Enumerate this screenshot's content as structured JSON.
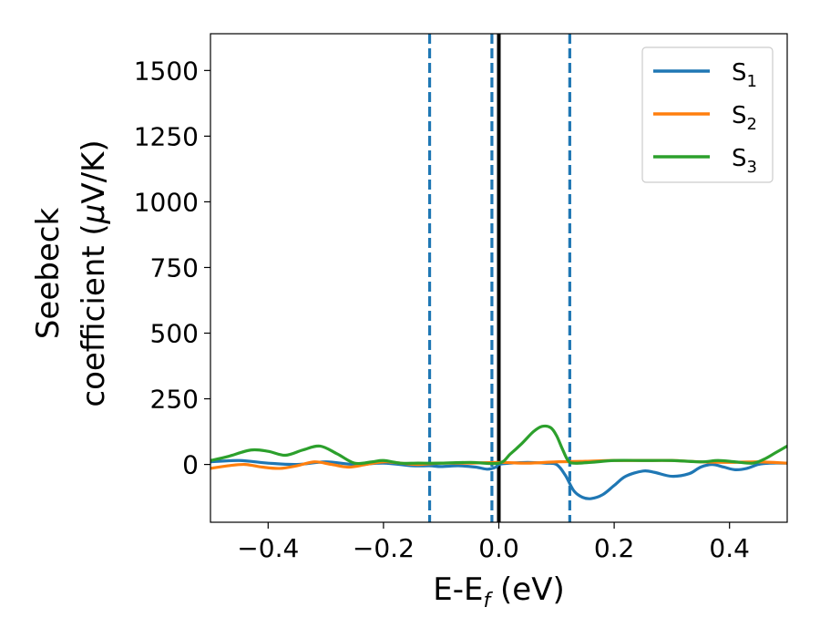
{
  "chart_data": {
    "type": "line",
    "title": "",
    "xlabel": {
      "base": "E-E",
      "sub": "f",
      "rest": " (eV)"
    },
    "ylabel": {
      "line1": "Seebeck",
      "line2_text": "coefficient  (",
      "mu": "μ",
      "line2_tail": "V/K)"
    },
    "xlim": [
      -0.5,
      0.5
    ],
    "ylim": [
      -220,
      1640
    ],
    "xticks": [
      -0.4,
      -0.2,
      0.0,
      0.2,
      0.4
    ],
    "xtick_labels": [
      "−0.4",
      "−0.2",
      "0.0",
      "0.2",
      "0.4"
    ],
    "yticks": [
      0,
      250,
      500,
      750,
      1000,
      1250,
      1500
    ],
    "ytick_labels": [
      "0",
      "250",
      "500",
      "750",
      "1000",
      "1250",
      "1500"
    ],
    "grid": false,
    "legend_position": "top-right",
    "vlines": [
      {
        "x": 0.0,
        "style": "solid",
        "color": "#000000"
      },
      {
        "x": -0.12,
        "style": "dashed",
        "color": "#1f77b4"
      },
      {
        "x": -0.012,
        "style": "dashed",
        "color": "#1f77b4"
      },
      {
        "x": 0.123,
        "style": "dashed",
        "color": "#1f77b4"
      }
    ],
    "series": [
      {
        "name": "S",
        "sub": "1",
        "color": "#1f77b4",
        "points": [
          [
            -0.5,
            10
          ],
          [
            -0.45,
            15
          ],
          [
            -0.4,
            5
          ],
          [
            -0.35,
            0
          ],
          [
            -0.3,
            10
          ],
          [
            -0.25,
            0
          ],
          [
            -0.2,
            5
          ],
          [
            -0.15,
            -5
          ],
          [
            -0.12,
            -5
          ],
          [
            -0.1,
            -8
          ],
          [
            -0.07,
            -5
          ],
          [
            -0.04,
            -10
          ],
          [
            -0.02,
            -18
          ],
          [
            -0.005,
            -10
          ],
          [
            0.0,
            0
          ],
          [
            0.02,
            5
          ],
          [
            0.05,
            8
          ],
          [
            0.08,
            5
          ],
          [
            0.1,
            0
          ],
          [
            0.115,
            -40
          ],
          [
            0.13,
            -100
          ],
          [
            0.145,
            -125
          ],
          [
            0.16,
            -130
          ],
          [
            0.18,
            -115
          ],
          [
            0.2,
            -80
          ],
          [
            0.22,
            -45
          ],
          [
            0.25,
            -25
          ],
          [
            0.27,
            -30
          ],
          [
            0.3,
            -45
          ],
          [
            0.33,
            -35
          ],
          [
            0.35,
            -10
          ],
          [
            0.37,
            0
          ],
          [
            0.39,
            -10
          ],
          [
            0.41,
            -20
          ],
          [
            0.43,
            -15
          ],
          [
            0.45,
            0
          ],
          [
            0.47,
            5
          ],
          [
            0.5,
            5
          ]
        ]
      },
      {
        "name": "S",
        "sub": "2",
        "color": "#ff7f0e",
        "points": [
          [
            -0.5,
            -15
          ],
          [
            -0.47,
            -5
          ],
          [
            -0.44,
            0
          ],
          [
            -0.41,
            -10
          ],
          [
            -0.38,
            -15
          ],
          [
            -0.35,
            -5
          ],
          [
            -0.32,
            10
          ],
          [
            -0.29,
            0
          ],
          [
            -0.26,
            -10
          ],
          [
            -0.23,
            0
          ],
          [
            -0.2,
            10
          ],
          [
            -0.17,
            5
          ],
          [
            -0.14,
            0
          ],
          [
            -0.1,
            5
          ],
          [
            -0.05,
            5
          ],
          [
            0.0,
            8
          ],
          [
            0.05,
            5
          ],
          [
            0.1,
            10
          ],
          [
            0.15,
            12
          ],
          [
            0.2,
            15
          ],
          [
            0.25,
            15
          ],
          [
            0.3,
            15
          ],
          [
            0.35,
            10
          ],
          [
            0.4,
            8
          ],
          [
            0.45,
            10
          ],
          [
            0.5,
            5
          ]
        ]
      },
      {
        "name": "S",
        "sub": "3",
        "color": "#2ca02c",
        "points": [
          [
            -0.5,
            15
          ],
          [
            -0.47,
            30
          ],
          [
            -0.43,
            55
          ],
          [
            -0.4,
            50
          ],
          [
            -0.37,
            35
          ],
          [
            -0.34,
            55
          ],
          [
            -0.31,
            70
          ],
          [
            -0.28,
            40
          ],
          [
            -0.25,
            5
          ],
          [
            -0.22,
            10
          ],
          [
            -0.2,
            15
          ],
          [
            -0.17,
            5
          ],
          [
            -0.14,
            5
          ],
          [
            -0.1,
            5
          ],
          [
            -0.05,
            8
          ],
          [
            0.0,
            5
          ],
          [
            0.02,
            40
          ],
          [
            0.04,
            80
          ],
          [
            0.06,
            125
          ],
          [
            0.075,
            145
          ],
          [
            0.09,
            140
          ],
          [
            0.1,
            110
          ],
          [
            0.11,
            60
          ],
          [
            0.12,
            15
          ],
          [
            0.13,
            5
          ],
          [
            0.16,
            8
          ],
          [
            0.2,
            15
          ],
          [
            0.25,
            15
          ],
          [
            0.3,
            15
          ],
          [
            0.35,
            10
          ],
          [
            0.38,
            15
          ],
          [
            0.41,
            10
          ],
          [
            0.44,
            5
          ],
          [
            0.46,
            20
          ],
          [
            0.48,
            45
          ],
          [
            0.5,
            70
          ]
        ]
      }
    ]
  }
}
